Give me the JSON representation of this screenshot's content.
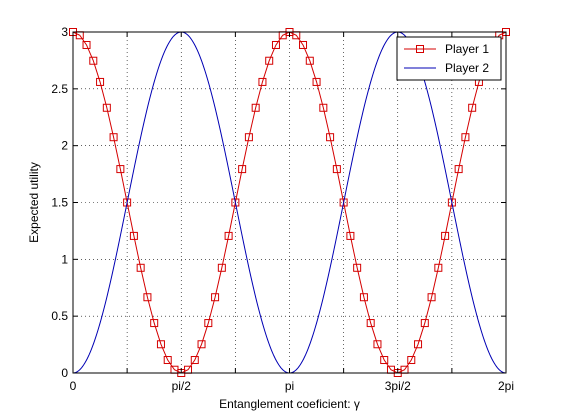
{
  "chart_data": {
    "type": "line",
    "title": "",
    "xlabel": "Entanglement coeficient: γ",
    "ylabel": "Expected utility",
    "xlim": [
      0,
      6.283185307179586
    ],
    "ylim": [
      0,
      3
    ],
    "x_ticks": [
      {
        "value": 0,
        "label": "0"
      },
      {
        "value": 1.5707963267948966,
        "label": "pi/2"
      },
      {
        "value": 3.141592653589793,
        "label": "pi"
      },
      {
        "value": 4.71238898038469,
        "label": "3pi/2"
      },
      {
        "value": 6.283185307179586,
        "label": "2pi"
      }
    ],
    "x_minor_grid": [
      0.7853981633974483,
      2.356194490192345,
      3.9269908169872414,
      5.497787143782138
    ],
    "y_ticks": [
      {
        "value": 0,
        "label": "0"
      },
      {
        "value": 0.5,
        "label": "0.5"
      },
      {
        "value": 1,
        "label": "1"
      },
      {
        "value": 1.5,
        "label": "1.5"
      },
      {
        "value": 2,
        "label": "2"
      },
      {
        "value": 2.5,
        "label": "2.5"
      },
      {
        "value": 3,
        "label": "3"
      }
    ],
    "grid": true,
    "legend_position": "top-right",
    "series": [
      {
        "name": "Player 1",
        "color": "#d40000",
        "marker": "square",
        "formula": "3*cos(gamma)^2",
        "x": [
          0,
          0.0982,
          0.1963,
          0.2945,
          0.3927,
          0.4909,
          0.589,
          0.6872,
          0.7854,
          0.8836,
          0.9817,
          1.0799,
          1.1781,
          1.2763,
          1.3744,
          1.4726,
          1.5708,
          1.669,
          1.7671,
          1.8653,
          1.9635,
          2.0617,
          2.1598,
          2.258,
          2.3562,
          2.4544,
          2.5525,
          2.6507,
          2.7489,
          2.8471,
          2.9452,
          3.0434,
          3.1416,
          3.2398,
          3.3379,
          3.4361,
          3.5343,
          3.6325,
          3.7306,
          3.8288,
          3.927,
          4.0252,
          4.1233,
          4.2215,
          4.3197,
          4.4179,
          4.516,
          4.6142,
          4.7124,
          4.8106,
          4.9087,
          5.0069,
          5.1051,
          5.2033,
          5.3014,
          5.3996,
          5.4978,
          5.596,
          5.6941,
          5.7923,
          5.8905,
          5.9887,
          6.0868,
          6.185,
          6.2832
        ],
        "y": [
          3.0,
          2.9712,
          2.8858,
          2.7472,
          2.5607,
          2.3334,
          2.0744,
          1.7939,
          1.5,
          1.2061,
          0.9256,
          0.6666,
          0.4393,
          0.2528,
          0.1142,
          0.0288,
          0.0,
          0.0288,
          0.1142,
          0.2528,
          0.4393,
          0.6666,
          0.9256,
          1.2061,
          1.5,
          1.7939,
          2.0744,
          2.3334,
          2.5607,
          2.7472,
          2.8858,
          2.9712,
          3.0,
          2.9712,
          2.8858,
          2.7472,
          2.5607,
          2.3334,
          2.0744,
          1.7939,
          1.5,
          1.2061,
          0.9256,
          0.6666,
          0.4393,
          0.2528,
          0.1142,
          0.0288,
          0.0,
          0.0288,
          0.1142,
          0.2528,
          0.4393,
          0.6666,
          0.9256,
          1.2061,
          1.5,
          1.7939,
          2.0744,
          2.3334,
          2.5607,
          2.7472,
          2.8858,
          2.9712,
          3.0
        ]
      },
      {
        "name": "Player 2",
        "color": "#0000b4",
        "marker": "none",
        "formula": "3*sin(gamma)^2",
        "x": [
          0,
          0.0982,
          0.1963,
          0.2945,
          0.3927,
          0.4909,
          0.589,
          0.6872,
          0.7854,
          0.8836,
          0.9817,
          1.0799,
          1.1781,
          1.2763,
          1.3744,
          1.4726,
          1.5708,
          1.669,
          1.7671,
          1.8653,
          1.9635,
          2.0617,
          2.1598,
          2.258,
          2.3562,
          2.4544,
          2.5525,
          2.6507,
          2.7489,
          2.8471,
          2.9452,
          3.0434,
          3.1416,
          3.2398,
          3.3379,
          3.4361,
          3.5343,
          3.6325,
          3.7306,
          3.8288,
          3.927,
          4.0252,
          4.1233,
          4.2215,
          4.3197,
          4.4179,
          4.516,
          4.6142,
          4.7124,
          4.8106,
          4.9087,
          5.0069,
          5.1051,
          5.2033,
          5.3014,
          5.3996,
          5.4978,
          5.596,
          5.6941,
          5.7923,
          5.8905,
          5.9887,
          6.0868,
          6.185,
          6.2832
        ],
        "y": [
          0.0,
          0.0288,
          0.1142,
          0.2528,
          0.4393,
          0.6666,
          0.9256,
          1.2061,
          1.5,
          1.7939,
          2.0744,
          2.3334,
          2.5607,
          2.7472,
          2.8858,
          2.9712,
          3.0,
          2.9712,
          2.8858,
          2.7472,
          2.5607,
          2.3334,
          2.0744,
          1.7939,
          1.5,
          1.2061,
          0.9256,
          0.6666,
          0.4393,
          0.2528,
          0.1142,
          0.0288,
          0.0,
          0.0288,
          0.1142,
          0.2528,
          0.4393,
          0.6666,
          0.9256,
          1.2061,
          1.5,
          1.7939,
          2.0744,
          2.3334,
          2.5607,
          2.7472,
          2.8858,
          2.9712,
          3.0,
          2.9712,
          2.8858,
          2.7472,
          2.5607,
          2.3334,
          2.0744,
          1.7939,
          1.5,
          1.2061,
          0.9256,
          0.6666,
          0.4393,
          0.2528,
          0.1142,
          0.0288,
          0.0
        ]
      }
    ]
  }
}
